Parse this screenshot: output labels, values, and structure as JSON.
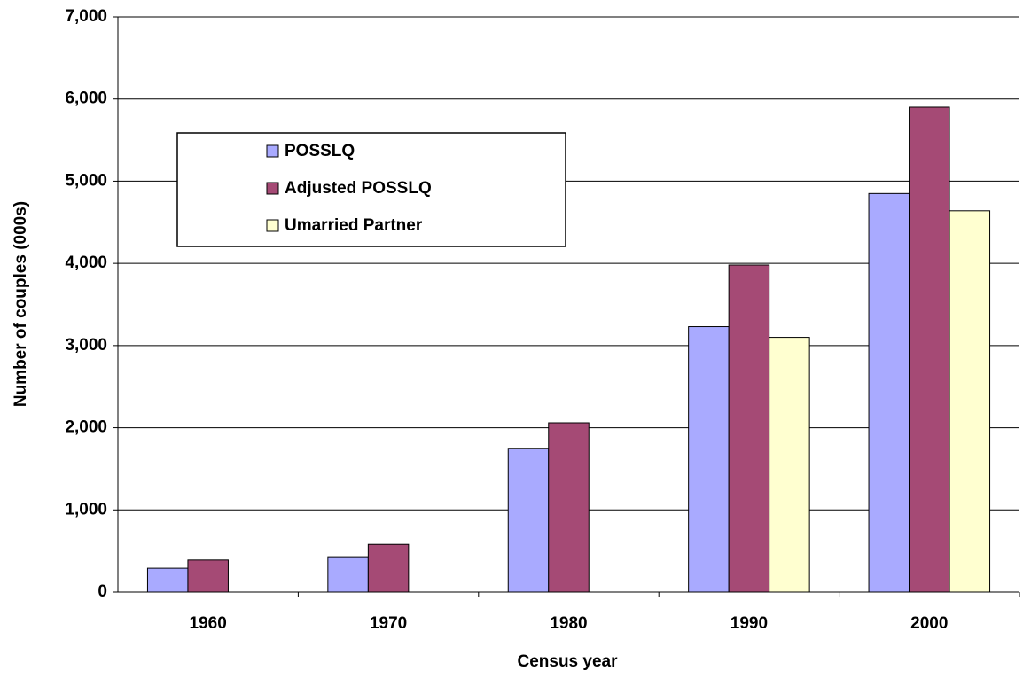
{
  "chart_data": {
    "type": "bar",
    "x_label": "Census year",
    "y_label": "Number of couples (000s)",
    "categories": [
      "1960",
      "1970",
      "1980",
      "1990",
      "2000"
    ],
    "series": [
      {
        "name": "POSSLQ",
        "color": "#a9aaff",
        "values": [
          290,
          430,
          1750,
          3230,
          4850
        ]
      },
      {
        "name": "Adjusted POSSLQ",
        "color": "#a54a75",
        "values": [
          390,
          580,
          2060,
          3980,
          5900
        ]
      },
      {
        "name": "Umarried Partner",
        "color": "#ffffd0",
        "values": [
          null,
          null,
          null,
          3100,
          4640
        ]
      }
    ],
    "ylim": [
      0,
      7000
    ],
    "yticks": [
      0,
      {
        "value": 1000,
        "label": "1,000"
      },
      {
        "value": 2000,
        "label": "2,000"
      },
      {
        "value": 3000,
        "label": "3,000"
      },
      {
        "value": 4000,
        "label": "4,000"
      },
      {
        "value": 5000,
        "label": "5,000"
      },
      {
        "value": 6000,
        "label": "6,000"
      },
      {
        "value": 7000,
        "label": "7,000"
      }
    ],
    "grid": true
  }
}
